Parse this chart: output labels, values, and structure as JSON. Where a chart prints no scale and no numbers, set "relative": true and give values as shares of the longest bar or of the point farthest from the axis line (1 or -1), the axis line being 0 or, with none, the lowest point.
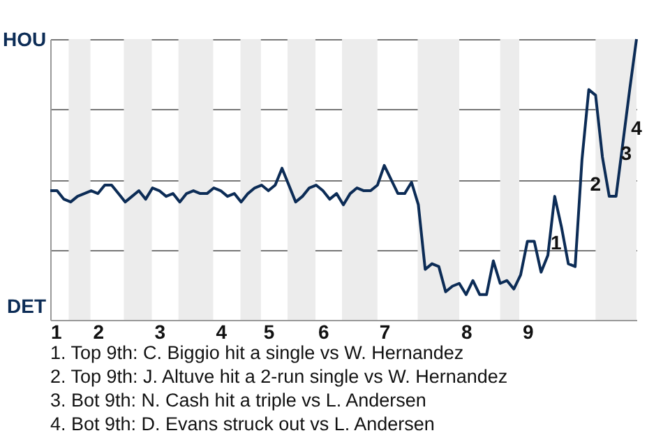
{
  "chart_data": {
    "type": "line",
    "relative": true,
    "categories": [
      "1",
      null,
      null,
      null,
      null,
      null,
      null,
      "2",
      null,
      null,
      null,
      null,
      null,
      null,
      null,
      null,
      "3",
      null,
      null,
      null,
      null,
      null,
      null,
      null,
      null,
      "4",
      null,
      null,
      null,
      null,
      null,
      null,
      "5",
      null,
      null,
      null,
      null,
      null,
      null,
      null,
      "6",
      null,
      null,
      null,
      null,
      null,
      null,
      null,
      null,
      "7",
      null,
      null,
      null,
      null,
      null,
      null,
      null,
      null,
      null,
      null,
      null,
      "8",
      null,
      null,
      null,
      null,
      null,
      null,
      null,
      null,
      "9",
      null,
      null,
      null,
      null,
      null,
      null,
      null,
      null,
      null,
      null,
      null,
      null,
      null,
      null,
      null,
      null
    ],
    "series": [
      {
        "color": "#0c2c56",
        "values": [
          0.46,
          0.46,
          0.43,
          0.42,
          0.44,
          0.45,
          0.46,
          0.45,
          0.48,
          0.48,
          0.45,
          0.42,
          0.44,
          0.46,
          0.43,
          0.47,
          0.46,
          0.44,
          0.45,
          0.42,
          0.45,
          0.46,
          0.45,
          0.45,
          0.47,
          0.46,
          0.44,
          0.45,
          0.42,
          0.45,
          0.47,
          0.48,
          0.46,
          0.48,
          0.54,
          0.48,
          0.42,
          0.44,
          0.47,
          0.48,
          0.46,
          0.43,
          0.45,
          0.41,
          0.45,
          0.47,
          0.46,
          0.46,
          0.48,
          0.55,
          0.5,
          0.45,
          0.45,
          0.49,
          0.41,
          0.18,
          0.2,
          0.19,
          0.1,
          0.12,
          0.13,
          0.09,
          0.14,
          0.09,
          0.09,
          0.21,
          0.13,
          0.14,
          0.11,
          0.16,
          0.28,
          0.28,
          0.17,
          0.23,
          0.44,
          0.33,
          0.2,
          0.19,
          0.57,
          0.82,
          0.8,
          0.58,
          0.44,
          0.44,
          0.63,
          0.82,
          1
        ]
      }
    ],
    "grid": "y",
    "annotations": [
      "HOU",
      "DET",
      "1",
      "2",
      "3",
      "4",
      "1. Top 9th: C. Biggio hit a single vs W. Hernandez",
      "2. Top 9th: J. Altuve hit a 2-run single vs W. Hernandez",
      "3. Bot 9th: N. Cash hit a triple vs L. Andersen",
      "4. Bot 9th: D. Evans struck out vs L. Andersen"
    ]
  }
}
